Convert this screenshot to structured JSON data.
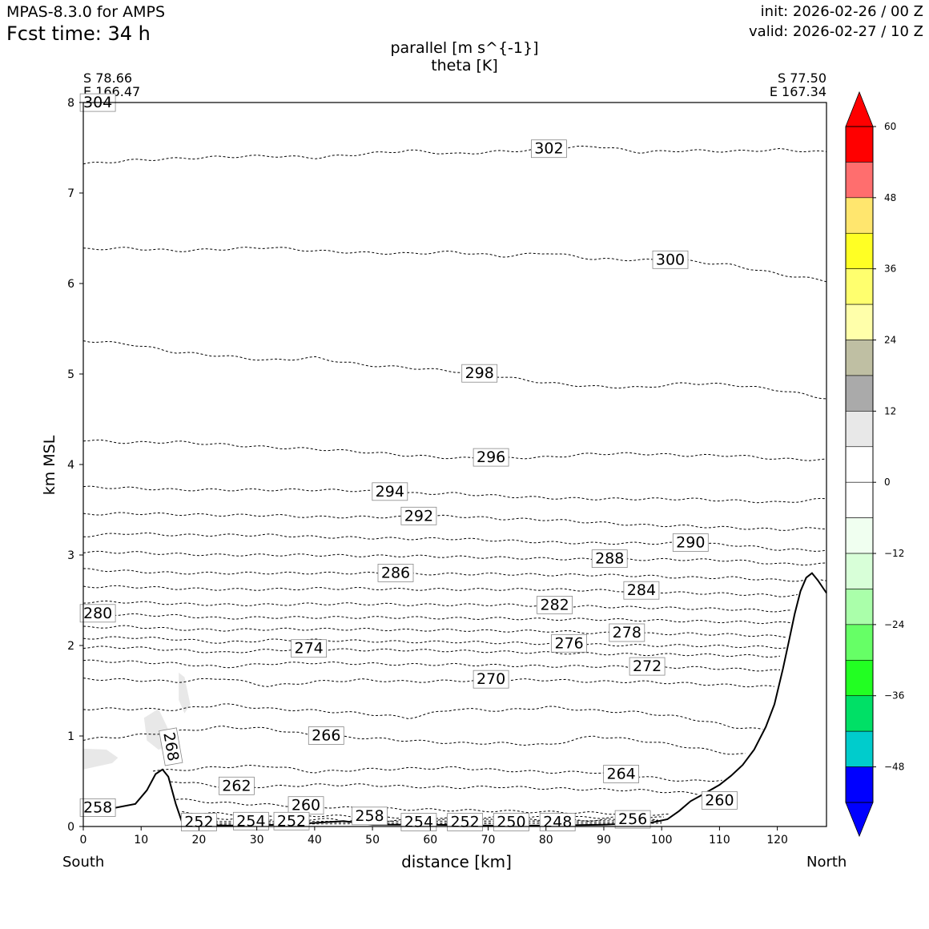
{
  "header": {
    "model": "MPAS-8.3.0 for AMPS",
    "fcst": "Fcst time:   34 h",
    "init": "init: 2026-02-26 / 00 Z",
    "valid": "valid: 2026-02-27 / 10 Z"
  },
  "chart_data": {
    "type": "cross-section contour",
    "title_line1": "parallel [m s^{-1}]",
    "title_line2": "theta [K]",
    "xlabel": "distance [km]",
    "ylabel": "km MSL",
    "start_label": "South",
    "end_label": "North",
    "start_coord": [
      "S 78.66",
      "E 166.47"
    ],
    "end_coord": [
      "S 77.50",
      "E 167.34"
    ],
    "xlim": [
      0,
      128.5
    ],
    "ylim": [
      0,
      8
    ],
    "x_ticks": [
      "0",
      "10",
      "20",
      "30",
      "40",
      "50",
      "60",
      "70",
      "80",
      "90",
      "100",
      "110",
      "120"
    ],
    "y_ticks": [
      "0",
      "1",
      "2",
      "3",
      "4",
      "5",
      "6",
      "7",
      "8"
    ],
    "terrain": [
      [
        0,
        0.17
      ],
      [
        5,
        0.2
      ],
      [
        9,
        0.25
      ],
      [
        11,
        0.4
      ],
      [
        12.5,
        0.58
      ],
      [
        13.7,
        0.63
      ],
      [
        14.7,
        0.55
      ],
      [
        16,
        0.25
      ],
      [
        17,
        0.06
      ],
      [
        18,
        0.02
      ],
      [
        25,
        0.01
      ],
      [
        35,
        0.02
      ],
      [
        45,
        0.06
      ],
      [
        50,
        0.02
      ],
      [
        60,
        0.02
      ],
      [
        70,
        0.01
      ],
      [
        80,
        0.01
      ],
      [
        90,
        0.02
      ],
      [
        98,
        0.04
      ],
      [
        101,
        0.08
      ],
      [
        103,
        0.17
      ],
      [
        105,
        0.28
      ],
      [
        107,
        0.35
      ],
      [
        110,
        0.46
      ],
      [
        112,
        0.56
      ],
      [
        114,
        0.68
      ],
      [
        116,
        0.85
      ],
      [
        118,
        1.1
      ],
      [
        119.5,
        1.35
      ],
      [
        121,
        1.75
      ],
      [
        122,
        2.05
      ],
      [
        123,
        2.35
      ],
      [
        124,
        2.6
      ],
      [
        125,
        2.75
      ],
      [
        126,
        2.8
      ],
      [
        127,
        2.72
      ],
      [
        128.5,
        2.58
      ]
    ],
    "theta_contours": [
      {
        "level": "302",
        "y": [
          7.32,
          7.36,
          7.38,
          7.4,
          7.41,
          7.39,
          7.43,
          7.47,
          7.43,
          7.46,
          7.48,
          7.52,
          7.45,
          7.47,
          7.46,
          7.48,
          7.45
        ],
        "label_x": 80.5
      },
      {
        "level": "300",
        "y": [
          6.38,
          6.39,
          6.36,
          6.38,
          6.4,
          6.36,
          6.34,
          6.33,
          6.35,
          6.3,
          6.34,
          6.27,
          6.26,
          6.25,
          6.2,
          6.1,
          6.03
        ],
        "label_x": 101.5
      },
      {
        "level": "298",
        "y": [
          5.37,
          5.33,
          5.24,
          5.2,
          5.15,
          5.18,
          5.1,
          5.07,
          5.03,
          4.97,
          4.9,
          4.86,
          4.85,
          4.9,
          4.88,
          4.82,
          4.73
        ],
        "label_x": 68.5
      },
      {
        "level": "296",
        "y": [
          4.27,
          4.24,
          4.25,
          4.22,
          4.19,
          4.17,
          4.14,
          4.1,
          4.07,
          4.07,
          4.08,
          4.12,
          4.12,
          4.1,
          4.1,
          4.06,
          4.05
        ],
        "label_x": 70.5
      },
      {
        "level": "294",
        "y": [
          3.75,
          3.74,
          3.72,
          3.72,
          3.72,
          3.72,
          3.71,
          3.68,
          3.68,
          3.65,
          3.63,
          3.62,
          3.62,
          3.62,
          3.6,
          3.58,
          3.62
        ],
        "label_x": 53
      },
      {
        "level": "292",
        "y": [
          3.45,
          3.46,
          3.45,
          3.44,
          3.44,
          3.42,
          3.42,
          3.42,
          3.43,
          3.4,
          3.39,
          3.36,
          3.33,
          3.32,
          3.3,
          3.28,
          3.3
        ],
        "label_x": 58
      },
      {
        "level": "290",
        "y": [
          3.21,
          3.24,
          3.22,
          3.22,
          3.22,
          3.2,
          3.19,
          3.18,
          3.18,
          3.16,
          3.14,
          3.13,
          3.13,
          3.13,
          3.11,
          3.06,
          3.05
        ],
        "label_x": 105
      },
      {
        "level": "288",
        "y": [
          3.03,
          3.03,
          3.01,
          3.0,
          3.0,
          3.0,
          2.99,
          2.99,
          2.98,
          2.97,
          2.96,
          2.95,
          2.95,
          2.95,
          2.94,
          2.9,
          2.9
        ],
        "label_x": 91
      },
      {
        "level": "286",
        "y": [
          2.84,
          2.82,
          2.8,
          2.8,
          2.8,
          2.8,
          2.8,
          2.79,
          2.79,
          2.79,
          2.78,
          2.78,
          2.77,
          2.75,
          2.75,
          2.72,
          2.72
        ],
        "label_x": 54
      },
      {
        "level": "284",
        "y": [
          2.65,
          2.65,
          2.63,
          2.62,
          2.62,
          2.63,
          2.63,
          2.62,
          2.62,
          2.62,
          2.62,
          2.61,
          2.6,
          2.58,
          2.57,
          2.55,
          2.56
        ],
        "label_x": 96.5
      },
      {
        "level": "282",
        "y": [
          2.48,
          2.48,
          2.46,
          2.45,
          2.45,
          2.46,
          2.46,
          2.45,
          2.45,
          2.45,
          2.44,
          2.43,
          2.42,
          2.41,
          2.4,
          2.38,
          2.38
        ],
        "label_x": 81.5
      },
      {
        "level": "280",
        "y": [
          2.35,
          2.34,
          2.33,
          2.3,
          2.31,
          2.31,
          2.31,
          2.31,
          2.3,
          2.3,
          2.29,
          2.29,
          2.28,
          2.27,
          2.26,
          2.25,
          2.25
        ],
        "label_x": 2.5
      },
      {
        "level": "278",
        "y": [
          2.2,
          2.21,
          2.18,
          2.17,
          2.18,
          2.18,
          2.18,
          2.17,
          2.17,
          2.16,
          2.16,
          2.14,
          2.13,
          2.13,
          2.12,
          2.1,
          2.1
        ],
        "label_x": 94
      },
      {
        "level": "276",
        "y": [
          2.08,
          2.09,
          2.07,
          2.03,
          2.06,
          2.06,
          2.05,
          2.04,
          2.04,
          2.03,
          2.02,
          2.01,
          2.0,
          2.0,
          1.99,
          1.98,
          1.98
        ],
        "label_x": 84
      },
      {
        "level": "274",
        "y": [
          1.98,
          1.98,
          1.95,
          1.92,
          1.95,
          1.96,
          1.95,
          1.95,
          1.94,
          1.93,
          1.92,
          1.91,
          1.9,
          1.9,
          1.89,
          1.88,
          1.88
        ],
        "label_x": 39
      },
      {
        "level": "272",
        "y": [
          1.83,
          1.82,
          1.8,
          1.76,
          1.8,
          1.81,
          1.8,
          1.79,
          1.79,
          1.78,
          1.77,
          1.77,
          1.76,
          1.76,
          1.74,
          1.72,
          1.72
        ],
        "label_x": 97.5
      },
      {
        "level": "270",
        "y": [
          1.63,
          1.62,
          1.6,
          1.64,
          1.55,
          1.6,
          1.62,
          1.6,
          1.61,
          1.62,
          1.62,
          1.6,
          1.6,
          1.58,
          1.56,
          1.54,
          1.54
        ],
        "label_x": 70.5
      },
      {
        "level": "268",
        "y": [
          1.3,
          1.3,
          1.29,
          1.35,
          1.3,
          1.28,
          1.25,
          1.2,
          1.3,
          1.28,
          1.32,
          1.28,
          1.26,
          1.2,
          1.1,
          1.05,
          1.0
        ],
        "label_x": 15
      },
      {
        "level": "266",
        "y": [
          0.96,
          1.0,
          1.05,
          1.1,
          1.08,
          1.0,
          0.98,
          0.95,
          0.92,
          0.92,
          0.9,
          1.0,
          0.95,
          0.88,
          0.8,
          0.78,
          0.75
        ],
        "label_x": 42
      },
      {
        "level": "264",
        "y": [
          0.0,
          0.0,
          0.62,
          0.66,
          0.67,
          0.6,
          0.63,
          0.64,
          0.65,
          0.62,
          0.6,
          0.6,
          0.55,
          0.5,
          0.52,
          0.45,
          0.0
        ],
        "label_x": 93
      },
      {
        "level": "262",
        "y": [
          0.0,
          0.0,
          0.5,
          0.44,
          0.44,
          0.46,
          0.46,
          0.44,
          0.43,
          0.44,
          0.42,
          0.41,
          0.4,
          0.37,
          0.33,
          0.0,
          0.0
        ],
        "label_x": 26.5
      },
      {
        "level": "260",
        "y": [
          0.0,
          0.0,
          0.3,
          0.26,
          0.24,
          0.22,
          0.2,
          0.19,
          0.18,
          0.17,
          0.16,
          0.15,
          0.14,
          0.12,
          0.0,
          0.0,
          0.0
        ],
        "label_x": 38.5
      },
      {
        "level": "258",
        "y": [
          0.0,
          0.0,
          0.16,
          0.14,
          0.12,
          0.12,
          0.11,
          0.1,
          0.1,
          0.1,
          0.1,
          0.1,
          0.1,
          0.09,
          0.0,
          0.0,
          0.0
        ],
        "label_x": 49.5
      },
      {
        "level": "256",
        "y": [
          0.0,
          0.0,
          0.1,
          0.09,
          0.08,
          0.08,
          0.07,
          0.07,
          0.07,
          0.07,
          0.07,
          0.07,
          0.07,
          0.06,
          0.0,
          0.0,
          0.0
        ],
        "label_x": 95
      }
    ],
    "extra_contour_labels": [
      {
        "text": "304",
        "x": 2.5,
        "y": 7.99
      },
      {
        "text": "258",
        "x": 2.5,
        "y": 0.2
      },
      {
        "text": "260",
        "x": 110,
        "y": 0.28
      },
      {
        "text": "252",
        "x": 20,
        "y": 0.04
      },
      {
        "text": "254",
        "x": 29,
        "y": 0.05
      },
      {
        "text": "252",
        "x": 36,
        "y": 0.05
      },
      {
        "text": "254",
        "x": 58,
        "y": 0.04
      },
      {
        "text": "252",
        "x": 66,
        "y": 0.04
      },
      {
        "text": "250",
        "x": 74,
        "y": 0.04
      },
      {
        "text": "248",
        "x": 82,
        "y": 0.04
      }
    ],
    "colorbar": {
      "ticks": [
        "60",
        "48",
        "36",
        "24",
        "12",
        "0",
        "−12",
        "−24",
        "−36",
        "−48"
      ],
      "tick_values": [
        60,
        48,
        36,
        24,
        12,
        0,
        -12,
        -24,
        -36,
        -48
      ],
      "range": [
        -54,
        60
      ],
      "bins": [
        {
          "from": 54,
          "to": 60,
          "color": "#ff0000"
        },
        {
          "from": 48,
          "to": 54,
          "color": "#ff6e6e"
        },
        {
          "from": 42,
          "to": 48,
          "color": "#ffe66e"
        },
        {
          "from": 36,
          "to": 42,
          "color": "#ffff24"
        },
        {
          "from": 30,
          "to": 36,
          "color": "#ffff6e"
        },
        {
          "from": 24,
          "to": 30,
          "color": "#ffffaa"
        },
        {
          "from": 18,
          "to": 24,
          "color": "#bfbfa3"
        },
        {
          "from": 12,
          "to": 18,
          "color": "#aaaaaa"
        },
        {
          "from": 6,
          "to": 12,
          "color": "#e8e8e8"
        },
        {
          "from": 0,
          "to": 6,
          "color": "#ffffff"
        },
        {
          "from": -6,
          "to": 0,
          "color": "#ffffff"
        },
        {
          "from": -12,
          "to": -6,
          "color": "#f0fff0"
        },
        {
          "from": -18,
          "to": -12,
          "color": "#d8ffd8"
        },
        {
          "from": -24,
          "to": -18,
          "color": "#aaffaa"
        },
        {
          "from": -30,
          "to": -24,
          "color": "#66ff66"
        },
        {
          "from": -36,
          "to": -30,
          "color": "#22ff22"
        },
        {
          "from": -42,
          "to": -36,
          "color": "#00e066"
        },
        {
          "from": -48,
          "to": -42,
          "color": "#00cccc"
        },
        {
          "from": -54,
          "to": -48,
          "color": "#0000ff"
        }
      ],
      "over_color": "#ff0000",
      "under_color": "#0000ff"
    }
  }
}
